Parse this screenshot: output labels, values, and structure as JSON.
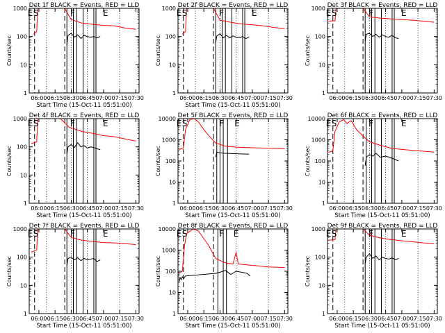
{
  "figure": {
    "xlabel": "Start Time (15-Oct-11 05:51:00)",
    "ylabel": "Counts/sec",
    "x_ticks": [
      "06:00",
      "06:15",
      "06:30",
      "06:45",
      "07:00",
      "07:15",
      "07:30"
    ],
    "y_ticks": [
      "1",
      "10",
      "100",
      "1000",
      "10000"
    ],
    "markers": [
      "E",
      "S",
      "F",
      "E"
    ],
    "colors": {
      "events": "#000000",
      "lld": "#ff0000",
      "axes": "#000000",
      "background": "#ffffff"
    }
  },
  "chart_data": [
    {
      "type": "line",
      "title": "Det 1f BLACK = Events, RED = LLD",
      "xlabel": "Start Time (15-Oct-11 05:51:00)",
      "ylabel": "Counts/sec",
      "y_scale": "log",
      "ylim": [
        1,
        1000
      ],
      "x_range": [
        "05:51",
        "07:33"
      ],
      "y_ticks": [
        1,
        10,
        100,
        1000
      ],
      "series": [
        {
          "color": "#ff0000",
          "x": [
            "05:55",
            "05:58",
            "05:59",
            "06:24",
            "06:30",
            "06:40",
            "06:50",
            "07:00",
            "07:10",
            "07:15",
            "07:20",
            "07:25",
            "07:30"
          ],
          "y": [
            120,
            150,
            1000,
            1000,
            400,
            300,
            270,
            250,
            240,
            220,
            200,
            190,
            180
          ]
        },
        {
          "color": "#000000",
          "x": [
            "06:26",
            "06:27",
            "06:30",
            "06:33",
            "06:36",
            "06:39",
            "06:42",
            "06:45",
            "06:48",
            "06:51",
            "06:54",
            "06:57"
          ],
          "y": [
            50,
            110,
            130,
            95,
            115,
            85,
            110,
            100,
            95,
            100,
            90,
            100
          ]
        }
      ],
      "vlines_dotted": [
        "06:07",
        "06:30",
        "06:45",
        "07:15"
      ],
      "vlines_dashed": [
        "05:56",
        "06:24"
      ],
      "vlines_solid": [
        "06:26",
        "06:32",
        "06:35",
        "06:41",
        "06:51",
        "06:53"
      ]
    },
    {
      "type": "line",
      "title": "Det 2f BLACK = Events, RED = LLD",
      "xlabel": "Start Time (15-Oct-11 05:51:00)",
      "ylabel": "Counts/sec",
      "y_scale": "log",
      "ylim": [
        1,
        1000
      ],
      "x_range": [
        "05:51",
        "07:33"
      ],
      "y_ticks": [
        1,
        10,
        100,
        1000
      ],
      "series": [
        {
          "color": "#ff0000",
          "x": [
            "05:55",
            "05:58",
            "05:59",
            "06:24",
            "06:30",
            "06:40",
            "06:50",
            "07:00",
            "07:10",
            "07:20",
            "07:30"
          ],
          "y": [
            120,
            150,
            1000,
            1000,
            380,
            320,
            280,
            260,
            240,
            210,
            190
          ]
        },
        {
          "color": "#000000",
          "x": [
            "06:26",
            "06:27",
            "06:30",
            "06:33",
            "06:36",
            "06:39",
            "06:42",
            "06:45",
            "06:48",
            "06:51",
            "06:54",
            "06:57"
          ],
          "y": [
            60,
            105,
            125,
            90,
            110,
            90,
            105,
            95,
            90,
            100,
            85,
            95
          ]
        }
      ],
      "vlines_dotted": [
        "06:07",
        "06:30",
        "06:45",
        "07:15"
      ],
      "vlines_dashed": [
        "05:56",
        "06:24"
      ],
      "vlines_solid": [
        "06:26",
        "06:32",
        "06:35",
        "06:41",
        "06:51",
        "06:53"
      ]
    },
    {
      "type": "line",
      "title": "Det 3f BLACK = Events, RED = LLD",
      "xlabel": "",
      "ylabel": "Counts/sec",
      "y_scale": "log",
      "ylim": [
        1,
        1000
      ],
      "x_range": [
        "05:51",
        "07:33"
      ],
      "y_ticks": [
        1,
        10,
        100,
        1000
      ],
      "series": [
        {
          "color": "#ff0000",
          "x": [
            "05:52",
            "05:58",
            "05:59",
            "06:24",
            "06:30",
            "06:40",
            "06:50",
            "07:00",
            "07:10",
            "07:20",
            "07:30"
          ],
          "y": [
            350,
            360,
            1000,
            1000,
            500,
            450,
            420,
            400,
            380,
            350,
            320
          ]
        },
        {
          "color": "#000000",
          "x": [
            "06:26",
            "06:27",
            "06:30",
            "06:33",
            "06:36",
            "06:39",
            "06:42",
            "06:45",
            "06:48",
            "06:51",
            "06:54",
            "06:57"
          ],
          "y": [
            70,
            120,
            130,
            100,
            120,
            95,
            115,
            100,
            95,
            110,
            90,
            85
          ]
        }
      ],
      "vlines_dotted": [
        "06:07",
        "06:30",
        "06:45",
        "07:15"
      ],
      "vlines_dashed": [
        "05:56",
        "06:24"
      ],
      "vlines_solid": [
        "06:26",
        "06:32",
        "06:35",
        "06:41",
        "06:51",
        "06:53"
      ]
    },
    {
      "type": "line",
      "title": "Det 4f BLACK = Events, RED = LLD",
      "xlabel": "Start Time (15-Oct-11 05:51:00)",
      "ylabel": "Counts/sec",
      "y_scale": "log",
      "ylim": [
        1,
        1000
      ],
      "x_range": [
        "05:51",
        "07:33"
      ],
      "y_ticks": [
        1,
        10,
        100,
        1000
      ],
      "series": [
        {
          "color": "#ff0000",
          "x": [
            "05:53",
            "05:58",
            "05:59",
            "06:20",
            "06:28",
            "06:40",
            "06:50",
            "07:00",
            "07:10",
            "07:20",
            "07:30"
          ],
          "y": [
            130,
            150,
            1000,
            1000,
            500,
            350,
            300,
            250,
            230,
            190,
            160
          ]
        },
        {
          "color": "#000000",
          "x": [
            "06:26",
            "06:27",
            "06:30",
            "06:33",
            "06:36",
            "06:39",
            "06:42",
            "06:45",
            "06:48",
            "06:51",
            "06:54",
            "06:57"
          ],
          "y": [
            55,
            100,
            120,
            95,
            140,
            100,
            110,
            90,
            100,
            95,
            85,
            80
          ]
        }
      ],
      "vlines_dotted": [
        "06:07",
        "06:30",
        "06:45",
        "07:15"
      ],
      "vlines_dashed": [
        "05:56",
        "06:24"
      ],
      "vlines_solid": [
        "06:26",
        "06:32",
        "06:35",
        "06:41",
        "06:51",
        "06:53"
      ]
    },
    {
      "type": "line",
      "title": "Det 5f BLACK = Events, RED = LLD",
      "xlabel": "Start Time (15-Oct-11 05:51:00)",
      "ylabel": "Counts/sec",
      "y_scale": "log",
      "ylim": [
        1,
        10000
      ],
      "x_range": [
        "05:51",
        "07:33"
      ],
      "y_ticks": [
        1,
        10,
        100,
        1000,
        10000
      ],
      "series": [
        {
          "color": "#ff0000",
          "x": [
            "05:52",
            "05:56",
            "05:58",
            "06:02",
            "06:06",
            "06:10",
            "06:15",
            "06:20",
            "06:26",
            "06:35",
            "06:45",
            "07:00",
            "07:15",
            "07:30"
          ],
          "y": [
            350,
            400,
            3000,
            9000,
            10000,
            7000,
            3000,
            1500,
            700,
            500,
            450,
            420,
            400,
            380
          ]
        },
        {
          "color": "#000000",
          "x": [
            "06:26",
            "06:27",
            "06:30",
            "06:35",
            "06:40",
            "06:45",
            "06:50",
            "06:57"
          ],
          "y": [
            150,
            260,
            240,
            230,
            225,
            220,
            215,
            210
          ]
        }
      ],
      "vlines_dotted": [
        "06:07",
        "06:45",
        "07:15"
      ],
      "vlines_dashed": [
        "05:56",
        "06:24"
      ],
      "vlines_solid": [
        "06:27",
        "06:30",
        "06:33",
        "06:37"
      ]
    },
    {
      "type": "line",
      "title": "Det 6f BLACK = Events, RED = LLD",
      "xlabel": "Start Time (15-Oct-11 05:51:00)",
      "ylabel": "Counts/sec",
      "y_scale": "log",
      "ylim": [
        1,
        10000
      ],
      "x_range": [
        "05:51",
        "07:33"
      ],
      "y_ticks": [
        1,
        10,
        100,
        1000,
        10000
      ],
      "series": [
        {
          "color": "#ff0000",
          "x": [
            "05:52",
            "05:56",
            "05:58",
            "06:02",
            "06:06",
            "06:09",
            "06:13",
            "06:18",
            "06:24",
            "06:30",
            "06:40",
            "06:50",
            "07:00",
            "07:15",
            "07:30"
          ],
          "y": [
            250,
            300,
            2500,
            7000,
            9000,
            6000,
            8000,
            3000,
            1500,
            800,
            550,
            400,
            350,
            300,
            260
          ]
        },
        {
          "color": "#000000",
          "x": [
            "06:26",
            "06:27",
            "06:30",
            "06:33",
            "06:36",
            "06:40",
            "06:45",
            "06:50",
            "06:57"
          ],
          "y": [
            60,
            150,
            200,
            170,
            230,
            150,
            170,
            140,
            100
          ]
        }
      ],
      "vlines_dotted": [
        "06:07",
        "06:15",
        "06:30",
        "06:45",
        "07:15"
      ],
      "vlines_dashed": [
        "05:56",
        "06:24"
      ],
      "vlines_solid": [
        "06:27",
        "06:32",
        "06:35",
        "06:41",
        "06:51",
        "06:53"
      ]
    },
    {
      "type": "line",
      "title": "Det 7f BLACK = Events, RED = LLD",
      "xlabel": "Start Time (15-Oct-11 05:51:00)",
      "ylabel": "Counts/sec",
      "y_scale": "log",
      "ylim": [
        1,
        1000
      ],
      "x_range": [
        "05:51",
        "07:33"
      ],
      "y_ticks": [
        1,
        10,
        100,
        1000
      ],
      "series": [
        {
          "color": "#ff0000",
          "x": [
            "05:53",
            "05:58",
            "05:59",
            "06:24",
            "06:30",
            "06:40",
            "06:50",
            "07:00",
            "07:10",
            "07:20",
            "07:30"
          ],
          "y": [
            150,
            180,
            1000,
            1000,
            500,
            400,
            360,
            330,
            320,
            300,
            280
          ]
        },
        {
          "color": "#000000",
          "x": [
            "06:26",
            "06:27",
            "06:30",
            "06:33",
            "06:36",
            "06:39",
            "06:42",
            "06:45",
            "06:48",
            "06:51",
            "06:54",
            "06:57"
          ],
          "y": [
            50,
            90,
            100,
            80,
            95,
            75,
            90,
            80,
            85,
            90,
            70,
            80
          ]
        }
      ],
      "vlines_dotted": [
        "06:07",
        "06:30",
        "06:45",
        "07:15"
      ],
      "vlines_dashed": [
        "05:56",
        "06:24"
      ],
      "vlines_solid": [
        "06:26",
        "06:32",
        "06:35",
        "06:41",
        "06:51",
        "06:53"
      ]
    },
    {
      "type": "line",
      "title": "Det 8f BLACK = Events, RED = LLD",
      "xlabel": "Start Time (15-Oct-11 05:51:00)",
      "ylabel": "Counts/sec",
      "y_scale": "log",
      "ylim": [
        1,
        10000
      ],
      "x_range": [
        "05:51",
        "07:33"
      ],
      "y_ticks": [
        1,
        10,
        100,
        1000,
        10000
      ],
      "series": [
        {
          "color": "#ff0000",
          "x": [
            "05:52",
            "05:55",
            "05:57",
            "05:59",
            "06:05",
            "06:10",
            "06:20",
            "06:26",
            "06:35",
            "06:42",
            "06:45",
            "06:47",
            "06:55",
            "07:05",
            "07:15",
            "07:30"
          ],
          "y": [
            80,
            100,
            1500,
            6000,
            10000,
            8000,
            1500,
            400,
            250,
            220,
            800,
            220,
            200,
            180,
            160,
            150
          ]
        },
        {
          "color": "#000000",
          "x": [
            "05:52",
            "05:53",
            "05:54",
            "05:55",
            "05:56",
            "05:58",
            "06:26",
            "06:30",
            "06:35",
            "06:40",
            "06:45",
            "06:50",
            "06:55",
            "06:58"
          ],
          "y": [
            30,
            50,
            40,
            55,
            45,
            60,
            80,
            90,
            110,
            70,
            100,
            90,
            80,
            60
          ]
        }
      ],
      "vlines_dotted": [
        "06:07",
        "06:45",
        "07:15"
      ],
      "vlines_dashed": [
        "05:56",
        "06:24"
      ],
      "vlines_solid": [
        "06:28",
        "06:33",
        "06:36"
      ]
    },
    {
      "type": "line",
      "title": "Det 9f BLACK = Events, RED = LLD",
      "xlabel": "Start Time (15-Oct-11 05:51:00)",
      "ylabel": "Counts/sec",
      "y_scale": "log",
      "ylim": [
        1,
        1000
      ],
      "x_range": [
        "05:51",
        "07:33"
      ],
      "y_ticks": [
        1,
        10,
        100,
        1000
      ],
      "series": [
        {
          "color": "#ff0000",
          "x": [
            "05:52",
            "05:58",
            "05:59",
            "06:24",
            "06:30",
            "06:40",
            "06:50",
            "07:00",
            "07:10",
            "07:20",
            "07:30"
          ],
          "y": [
            400,
            420,
            1000,
            1000,
            600,
            480,
            420,
            380,
            350,
            320,
            300
          ]
        },
        {
          "color": "#000000",
          "x": [
            "06:26",
            "06:27",
            "06:30",
            "06:33",
            "06:36",
            "06:39",
            "06:42",
            "06:45",
            "06:48",
            "06:51",
            "06:54",
            "06:57"
          ],
          "y": [
            60,
            100,
            130,
            90,
            110,
            80,
            100,
            90,
            85,
            95,
            80,
            90
          ]
        }
      ],
      "vlines_dotted": [
        "06:07",
        "06:30",
        "06:45",
        "07:15"
      ],
      "vlines_dashed": [
        "05:56",
        "06:24"
      ],
      "vlines_solid": [
        "06:26",
        "06:32",
        "06:35",
        "06:41",
        "06:51",
        "06:53"
      ]
    }
  ]
}
